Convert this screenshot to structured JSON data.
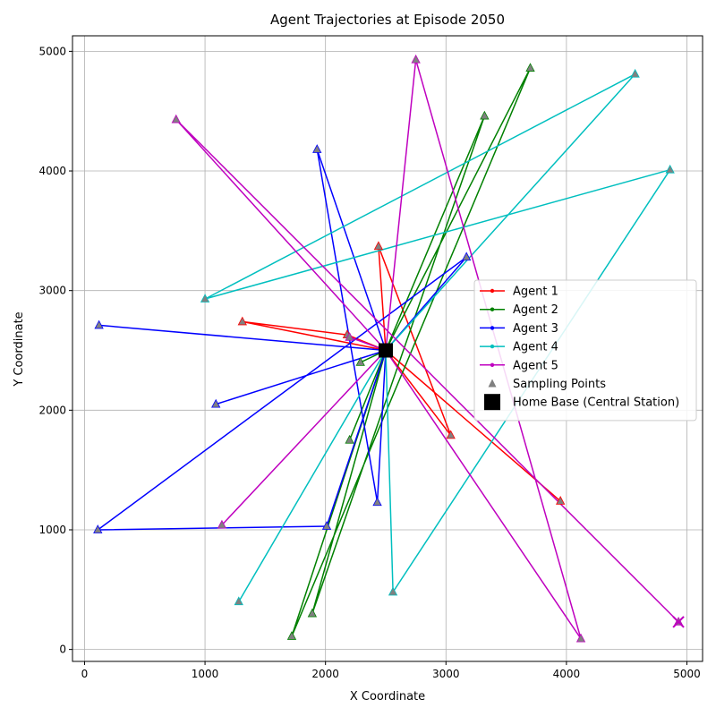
{
  "chart_data": {
    "type": "line",
    "title": "Agent Trajectories at Episode 2050",
    "xlabel": "X Coordinate",
    "ylabel": "Y Coordinate",
    "xlim": [
      -100,
      5130
    ],
    "ylim": [
      -100,
      5130
    ],
    "xticks": [
      "0",
      "1000",
      "2000",
      "3000",
      "4000",
      "5000"
    ],
    "yticks": [
      "0",
      "1000",
      "2000",
      "3000",
      "4000",
      "5000"
    ],
    "grid": true,
    "legend_position": "center-right",
    "home_base": {
      "name": "Home Base (Central Station)",
      "x": 2500,
      "y": 2500,
      "color": "#000000"
    },
    "sampling_points_label": "Sampling Points",
    "sampling_marker_color": "#808080",
    "series": [
      {
        "name": "Agent 1",
        "color": "#ff0000",
        "points": [
          [
            2500,
            2500
          ],
          [
            2440,
            3370
          ],
          [
            3040,
            1790
          ],
          [
            2500,
            2500
          ],
          [
            1310,
            2740
          ],
          [
            2180,
            2630
          ],
          [
            2500,
            2500
          ],
          [
            3950,
            1240
          ],
          [
            2500,
            2500
          ]
        ]
      },
      {
        "name": "Agent 2",
        "color": "#008000",
        "points": [
          [
            2500,
            2500
          ],
          [
            3700,
            4860
          ],
          [
            1720,
            110
          ],
          [
            2500,
            2500
          ],
          [
            3320,
            4460
          ],
          [
            1890,
            300
          ],
          [
            2500,
            2500
          ],
          [
            2200,
            1750
          ],
          [
            2500,
            2500
          ],
          [
            2290,
            2400
          ],
          [
            2500,
            2500
          ]
        ]
      },
      {
        "name": "Agent 3",
        "color": "#0000ff",
        "points": [
          [
            2500,
            2500
          ],
          [
            3170,
            3280
          ],
          [
            110,
            1000
          ],
          [
            2010,
            1030
          ],
          [
            2500,
            2500
          ],
          [
            1090,
            2050
          ],
          [
            2500,
            2500
          ],
          [
            1930,
            4180
          ],
          [
            2430,
            1230
          ],
          [
            2500,
            2500
          ],
          [
            120,
            2710
          ],
          [
            2500,
            2500
          ]
        ]
      },
      {
        "name": "Agent 4",
        "color": "#00bfbf",
        "points": [
          [
            2500,
            2500
          ],
          [
            4570,
            4810
          ],
          [
            1000,
            2930
          ],
          [
            4860,
            4010
          ],
          [
            2560,
            480
          ],
          [
            2500,
            2500
          ],
          [
            1280,
            400
          ],
          [
            2500,
            2500
          ]
        ]
      },
      {
        "name": "Agent 5",
        "color": "#bf00bf",
        "points": [
          [
            2500,
            2500
          ],
          [
            2750,
            4930
          ],
          [
            4120,
            90
          ],
          [
            2500,
            2500
          ],
          [
            1140,
            1040
          ],
          [
            2500,
            2500
          ],
          [
            2200,
            2610
          ],
          [
            2500,
            2500
          ],
          [
            760,
            4430
          ],
          [
            4930,
            230
          ]
        ]
      }
    ]
  }
}
